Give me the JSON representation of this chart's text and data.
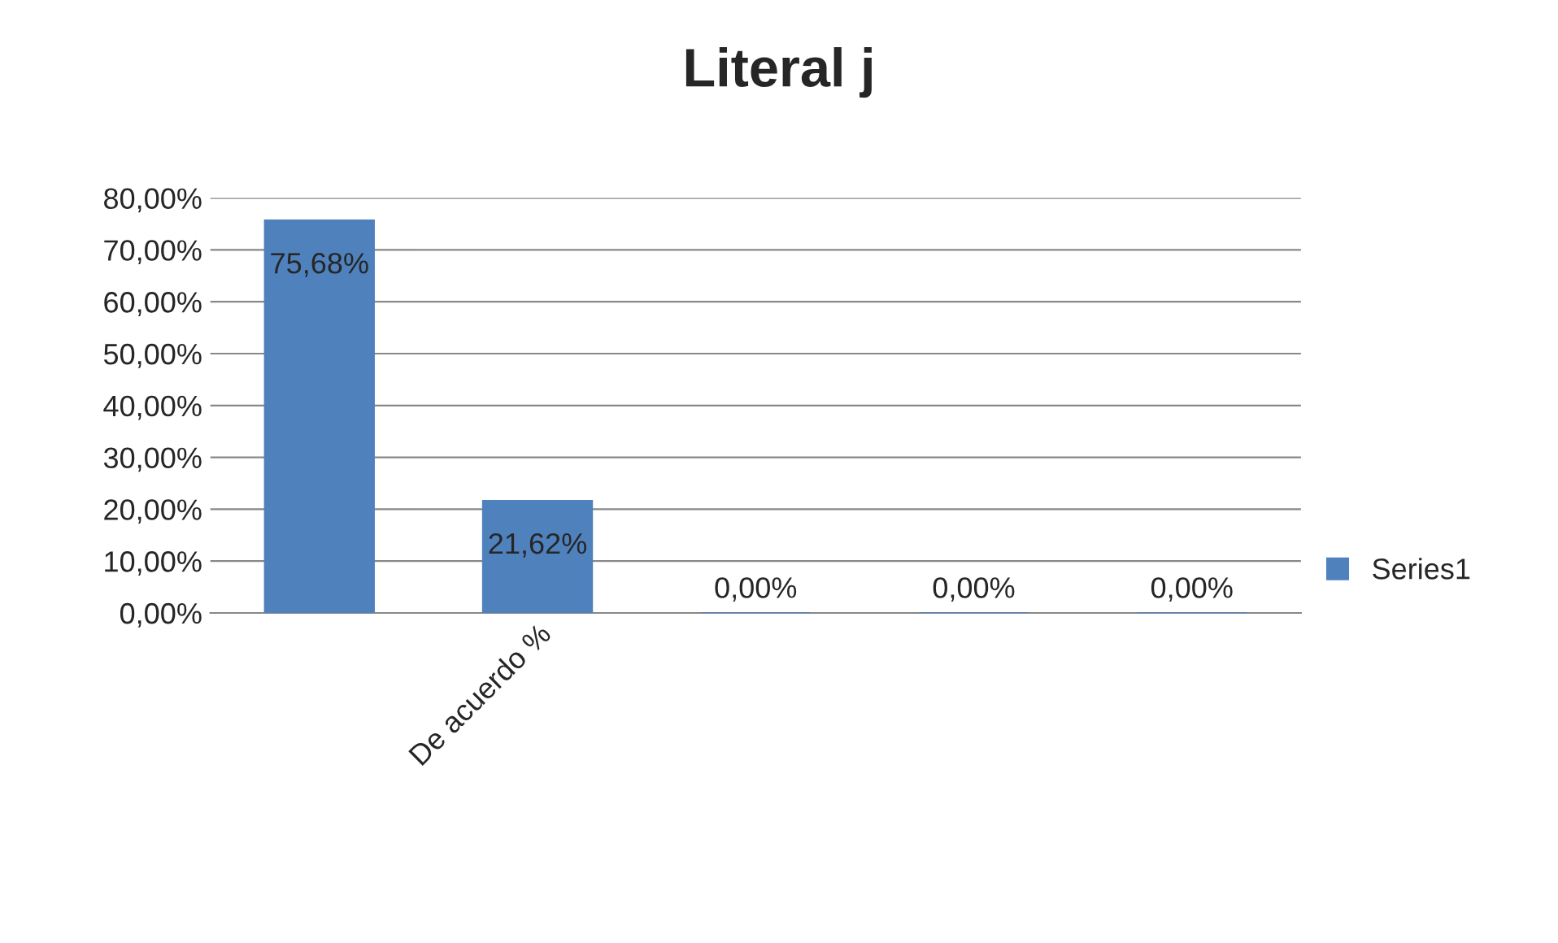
{
  "chart_data": {
    "type": "bar",
    "title": "Literal j",
    "categories": [
      null,
      "De acuerdo %",
      null,
      null,
      null
    ],
    "series": [
      {
        "name": "Series1",
        "color": "#4f81bd",
        "values": [
          75.68,
          21.62,
          0,
          0,
          0
        ],
        "value_labels": [
          "75,68%",
          "21,62%",
          "0,00%",
          "0,00%",
          "0,00%"
        ]
      }
    ],
    "ylim": [
      0,
      80
    ],
    "yticks": [
      {
        "value": 0,
        "label": "0,00%"
      },
      {
        "value": 10,
        "label": "10,00%"
      },
      {
        "value": 20,
        "label": "20,00%"
      },
      {
        "value": 30,
        "label": "30,00%"
      },
      {
        "value": 40,
        "label": "40,00%"
      },
      {
        "value": 50,
        "label": "50,00%"
      },
      {
        "value": 60,
        "label": "60,00%"
      },
      {
        "value": 70,
        "label": "70,00%"
      },
      {
        "value": 80,
        "label": "80,00%"
      }
    ],
    "grid": "y",
    "legend": "right"
  }
}
